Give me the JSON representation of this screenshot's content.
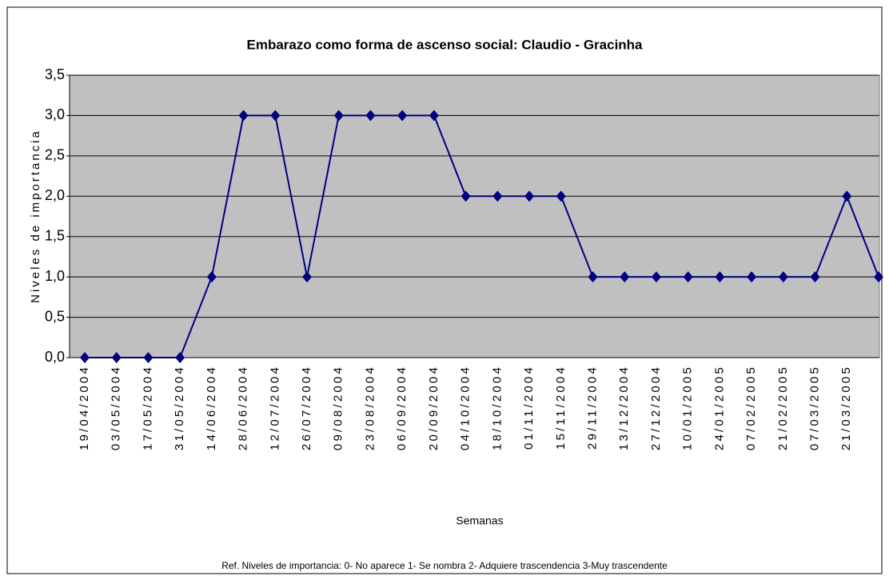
{
  "chart_data": {
    "type": "line",
    "title": "Embarazo como forma de ascenso social: Claudio - Gracinha",
    "y_label": "Niveles de importancia",
    "x_label": "Semanas",
    "footnote": "Ref. Niveles de importancia: 0- No aparece  1- Se nombra  2- Adquiere trascendencia  3-Muy trascendente",
    "categories": [
      "19/04/2004",
      "03/05/2004",
      "17/05/2004",
      "31/05/2004",
      "14/06/2004",
      "28/06/2004",
      "12/07/2004",
      "26/07/2004",
      "09/08/2004",
      "23/08/2004",
      "06/09/2004",
      "20/09/2004",
      "04/10/2004",
      "18/10/2004",
      "01/11/2004",
      "15/11/2004",
      "29/11/2004",
      "13/12/2004",
      "27/12/2004",
      "10/01/2005",
      "24/01/2005",
      "07/02/2005",
      "21/02/2005",
      "07/03/2005",
      "21/03/2005",
      null
    ],
    "values": [
      0,
      0,
      0,
      0,
      1,
      3,
      3,
      1,
      3,
      3,
      3,
      3,
      2,
      2,
      2,
      2,
      1,
      1,
      1,
      1,
      1,
      1,
      1,
      1,
      2,
      1
    ],
    "color": "#000080",
    "plot_background": "#c0c0c0",
    "ylim": [
      0,
      3.5
    ],
    "yticks": [
      {
        "value": 0,
        "label": "0,0"
      },
      {
        "value": 0.5,
        "label": "0,5"
      },
      {
        "value": 1,
        "label": "1,0"
      },
      {
        "value": 1.5,
        "label": "1,5"
      },
      {
        "value": 2,
        "label": "2,0"
      },
      {
        "value": 2.5,
        "label": "2,5"
      },
      {
        "value": 3,
        "label": "3,0"
      },
      {
        "value": 3.5,
        "label": "3,5"
      }
    ],
    "grid": true
  }
}
